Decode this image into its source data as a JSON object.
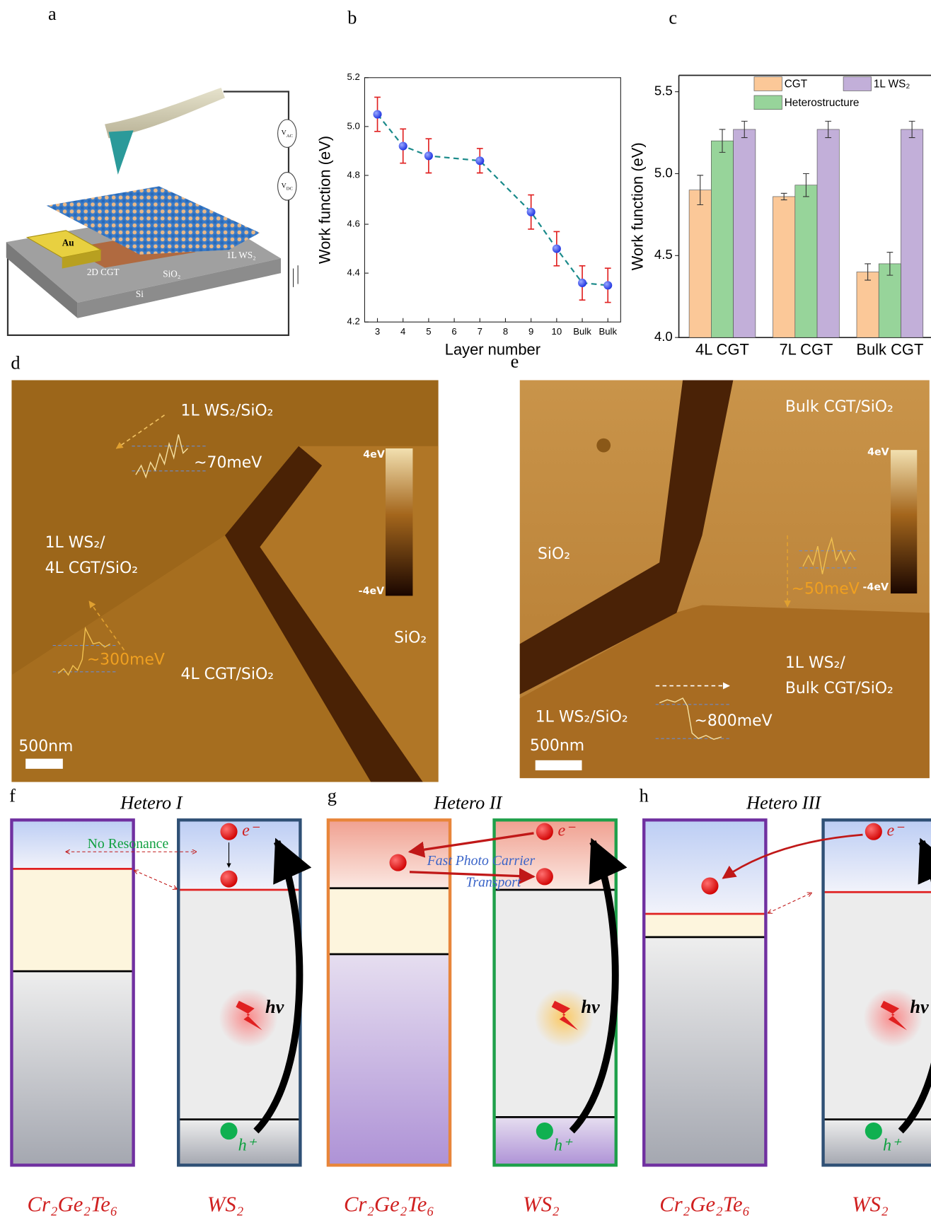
{
  "panel_labels": [
    "a",
    "b",
    "c",
    "d",
    "e",
    "f",
    "g",
    "h"
  ],
  "schematic": {
    "v_ac": [
      "V",
      "AC"
    ],
    "v_dc": [
      "V",
      "DC"
    ],
    "electrode": "Au",
    "flake": "2D CGT",
    "oxide": "SiO₂",
    "substrate": "Si",
    "monolayer": "1L WS₂"
  },
  "chart_data": [
    {
      "type": "line",
      "x": [
        3,
        4,
        5,
        7,
        9,
        10,
        11,
        12
      ],
      "values": [
        5.05,
        4.92,
        4.88,
        4.86,
        4.65,
        4.5,
        4.36,
        4.35
      ],
      "errors": [
        0.07,
        0.07,
        0.07,
        0.05,
        0.07,
        0.07,
        0.07,
        0.07
      ],
      "xlim": [
        2.5,
        12.5
      ],
      "xticks": [
        3,
        4,
        5,
        6,
        7,
        8,
        9,
        10,
        {
          "value": 11,
          "label": "Bulk"
        },
        {
          "value": 12,
          "label": "Bulk"
        }
      ],
      "ylim": [
        4.2,
        5.2
      ],
      "yticks": [
        4.2,
        4.4,
        4.6,
        4.8,
        {
          "value": 5,
          "label": "5.0"
        },
        5.2
      ],
      "x_label": "Layer number",
      "y_label": "Work function (eV)",
      "color": "#1a2fe0",
      "line_color": "#1a8a8a",
      "error_color": "#e02020"
    },
    {
      "type": "bar",
      "categories": [
        "4L CGT",
        "7L CGT",
        "Bulk CGT"
      ],
      "series": [
        {
          "name": "CGT",
          "color": "#fbc898",
          "values": [
            4.9,
            4.86,
            4.4
          ],
          "errors": [
            0.09,
            0.02,
            0.05
          ]
        },
        {
          "name": "1L WS₂",
          "color": "#c2afd9",
          "values": [
            5.27,
            5.27,
            5.27
          ],
          "errors": [
            0.05,
            0.05,
            0.05
          ]
        },
        {
          "name": "Heterostructure",
          "color": "#97d49a",
          "values": [
            5.2,
            4.93,
            4.45
          ],
          "errors": [
            0.07,
            0.07,
            0.07
          ]
        }
      ],
      "ylim": [
        4.0,
        5.6
      ],
      "yticks": [
        {
          "value": 4,
          "label": "4.0"
        },
        4.5,
        {
          "value": 5,
          "label": "5.0"
        },
        5.5
      ],
      "y_label": "Work function (eV)",
      "legend": "top"
    }
  ],
  "afm_d": {
    "region_top": "1L WS₂/SiO₂",
    "profile_top": "~70meV",
    "region_left": [
      "1L WS₂/",
      "4L CGT/SiO₂"
    ],
    "profile_left": "~300meV",
    "region_bottom": "4L CGT/SiO₂",
    "region_right": "SiO₂",
    "scale_bar": "500nm",
    "colorbar_max": "4eV",
    "colorbar_min": "-4eV"
  },
  "afm_e": {
    "region_top": "Bulk CGT/SiO₂",
    "region_left": "SiO₂",
    "profile_right": "~50meV",
    "region_right": [
      "1L WS₂/",
      "Bulk CGT/SiO₂"
    ],
    "region_bottom": "1L WS₂/SiO₂",
    "profile_bottom": "~800meV",
    "scale_bar": "500nm",
    "colorbar_max": "4eV",
    "colorbar_min": "-4eV"
  },
  "band_diagrams": [
    {
      "title": "Hetero I",
      "left_material": "Cr₂Ge₂Te₆",
      "right_material": "WS₂",
      "electron": "e⁻",
      "hole": "h⁺",
      "photon": "hv",
      "note": [
        "No Resonance"
      ]
    },
    {
      "title": "Hetero II",
      "left_material": "Cr₂Ge₂Te₆",
      "right_material": "WS₂",
      "electron": "e⁻",
      "hole": "h⁺",
      "photon": "hv",
      "note": [
        "Fast Photo Carrier",
        "Transport"
      ]
    },
    {
      "title": "Hetero III",
      "left_material": "Cr₂Ge₂Te₆",
      "right_material": "WS₂",
      "electron": "e⁻",
      "hole": "h⁺",
      "photon": "hv"
    }
  ]
}
